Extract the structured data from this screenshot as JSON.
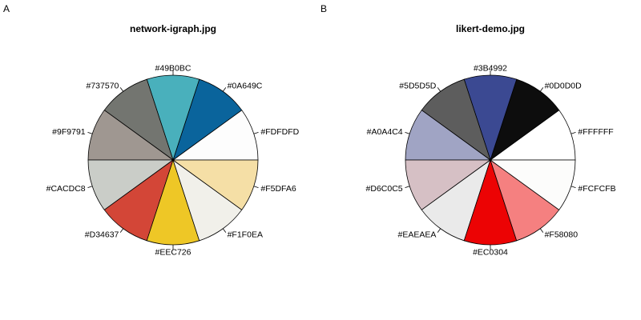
{
  "chart_data": [
    {
      "type": "pie",
      "panel": "A",
      "title": "network-igraph.jpg",
      "categories": [
        "#FDFDFD",
        "#0A649C",
        "#49B0BC",
        "#737570",
        "#9F9791",
        "#CACDC8",
        "#D34637",
        "#EEC726",
        "#F1F0EA",
        "#F5DFA6"
      ],
      "values": [
        1,
        1,
        1,
        1,
        1,
        1,
        1,
        1,
        1,
        1
      ],
      "colors": [
        "#FDFDFD",
        "#0A649C",
        "#49B0BC",
        "#737570",
        "#9F9791",
        "#CACDC8",
        "#D34637",
        "#EEC726",
        "#F1F0EA",
        "#F5DFA6"
      ],
      "start_angle_deg": 0,
      "direction": "counterclockwise"
    },
    {
      "type": "pie",
      "panel": "B",
      "title": "likert-demo.jpg",
      "categories": [
        "#FFFFFF",
        "#0D0D0D",
        "#3B4992",
        "#5D5D5D",
        "#A0A4C4",
        "#D6C0C5",
        "#EAEAEA",
        "#EC0304",
        "#F58080",
        "#FCFCFB"
      ],
      "values": [
        1,
        1,
        1,
        1,
        1,
        1,
        1,
        1,
        1,
        1
      ],
      "colors": [
        "#FFFFFF",
        "#0D0D0D",
        "#3B4992",
        "#5D5D5D",
        "#A0A4C4",
        "#D6C0C5",
        "#EAEAEA",
        "#EC0304",
        "#F58080",
        "#FCFCFB"
      ],
      "start_angle_deg": 0,
      "direction": "counterclockwise"
    }
  ]
}
